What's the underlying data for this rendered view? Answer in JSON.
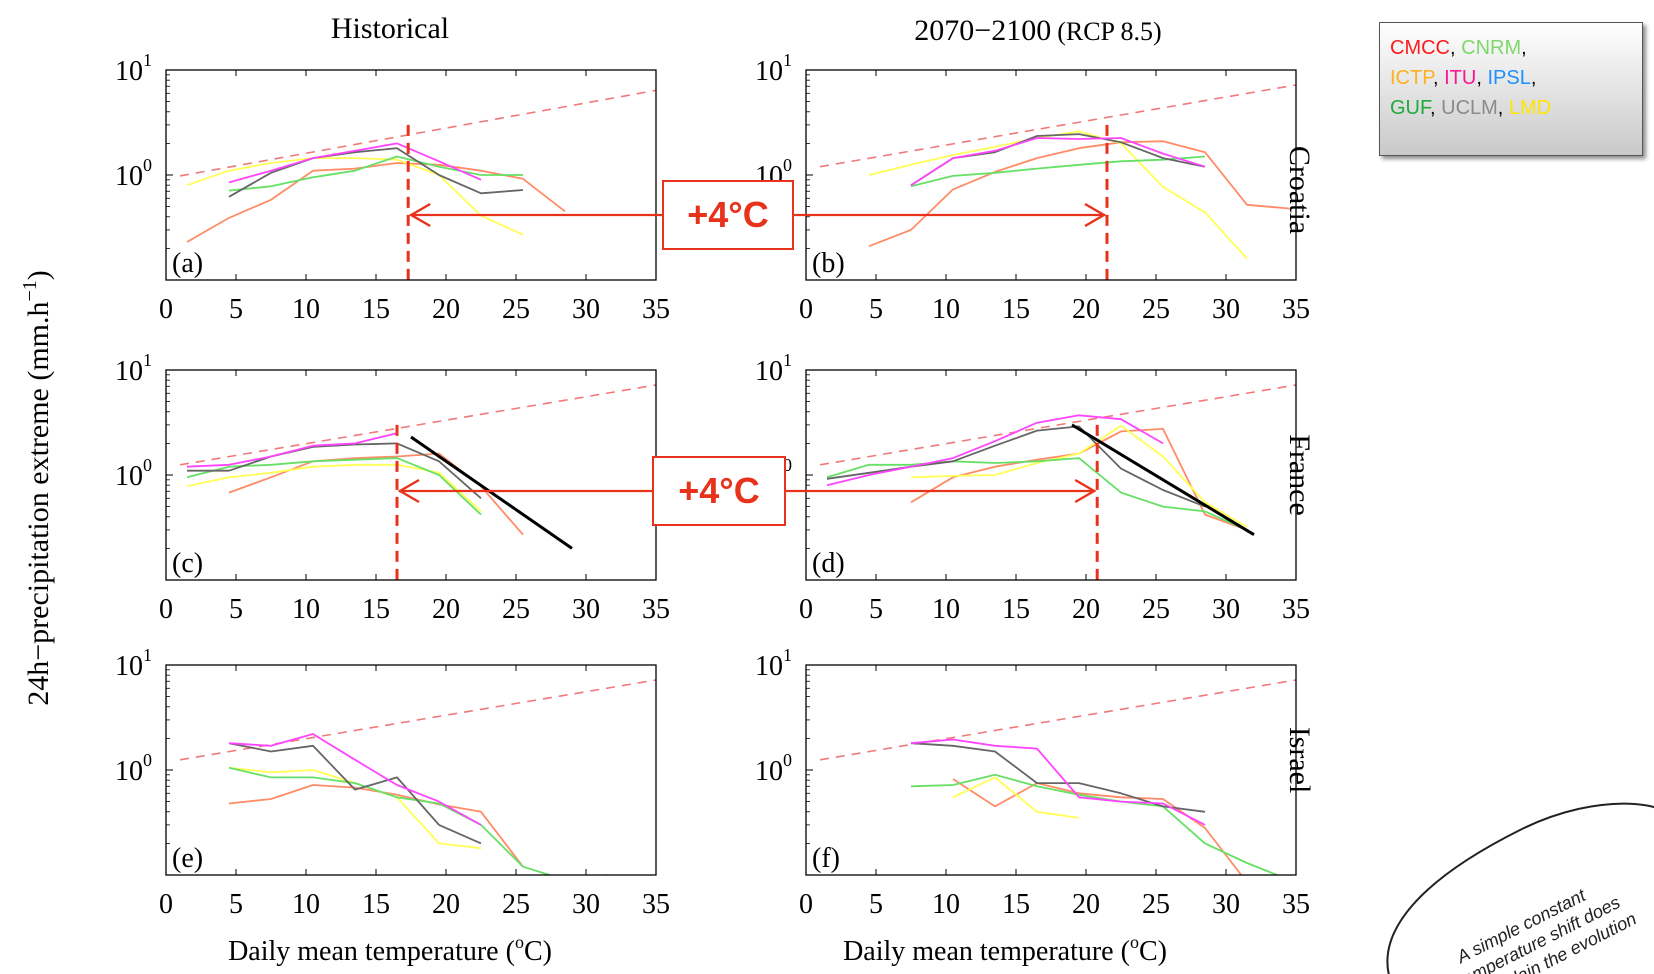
{
  "chart_data": {
    "type": "line",
    "column_titles": [
      "Historical",
      "2070−2100",
      "(RCP 8.5)"
    ],
    "ylabel": "24h−precipitation extreme (mm.h",
    "ylabel_sup": "−1",
    "ylabel_close": ")",
    "xlabel": "Daily mean temperature (",
    "xlabel_sup": "o",
    "xlabel_unit": "C)",
    "x_range": [
      0,
      35
    ],
    "x_ticks": [
      "0",
      "5",
      "10",
      "15",
      "20",
      "25",
      "30",
      "35"
    ],
    "y_scale": "log",
    "y_range": [
      0.1,
      10
    ],
    "y_ticks": [
      {
        "base": "10",
        "exp": "1",
        "value": 10
      },
      {
        "base": "10",
        "exp": "0",
        "value": 1
      }
    ],
    "row_labels": [
      "Croatia",
      "France",
      "Israel"
    ],
    "panel_labels": [
      "(a)",
      "(b)",
      "(c)",
      "(d)",
      "(e)",
      "(f)"
    ],
    "model_colors": {
      "CMCC": "#ff2020",
      "CNRM": "#7fd86a",
      "ICTP": "#ffb020",
      "ITU": "#ff1493",
      "IPSL": "#1e90ff",
      "GUF": "#20b040",
      "UCLM": "#8a8a8a",
      "LMD": "#ffe500"
    },
    "panels": [
      {
        "id": "a",
        "row": 0,
        "col": 0,
        "cc_line": [
          [
            1,
            0.98
          ],
          [
            35,
            6.4
          ]
        ],
        "vline": 17.3,
        "series": [
          {
            "color": "#ff8c66",
            "x": [
              1.5,
              4.5,
              7.5,
              10.5,
              13.5,
              16.5,
              19.5,
              22.5,
              25.5,
              28.5
            ],
            "y": [
              0.23,
              0.39,
              0.58,
              1.1,
              1.15,
              1.3,
              1.25,
              1.1,
              0.92,
              0.45
            ]
          },
          {
            "color": "#ffff55",
            "x": [
              1.5,
              4.5,
              7.5,
              10.5,
              13.5,
              16.5,
              19.5,
              22.5,
              25.5
            ],
            "y": [
              0.8,
              1.1,
              1.3,
              1.45,
              1.45,
              1.4,
              1.0,
              0.41,
              0.27
            ]
          },
          {
            "color": "#66e066",
            "x": [
              4.5,
              7.5,
              10.5,
              13.5,
              16.5,
              19.5,
              22.5,
              25.5
            ],
            "y": [
              0.71,
              0.78,
              0.95,
              1.1,
              1.5,
              1.2,
              1.0,
              1.0
            ]
          },
          {
            "color": "#666666",
            "x": [
              4.5,
              7.5,
              10.5,
              13.5,
              16.5,
              19.5,
              22.5,
              25.5
            ],
            "y": [
              0.62,
              1.05,
              1.45,
              1.65,
              1.8,
              1.0,
              0.67,
              0.72
            ]
          },
          {
            "color": "#ff44ff",
            "x": [
              4.5,
              7.5,
              10.5,
              13.5,
              16.5,
              19.5,
              22.5
            ],
            "y": [
              0.85,
              1.1,
              1.45,
              1.7,
              2.0,
              1.35,
              0.9
            ]
          }
        ]
      },
      {
        "id": "b",
        "row": 0,
        "col": 1,
        "cc_line": [
          [
            1,
            1.2
          ],
          [
            35,
            7.2
          ]
        ],
        "vline": 21.5,
        "series": [
          {
            "color": "#ff8c66",
            "x": [
              4.5,
              7.5,
              10.5,
              13.5,
              16.5,
              19.5,
              22.5,
              25.5,
              28.5,
              31.5,
              34.5
            ],
            "y": [
              0.21,
              0.3,
              0.73,
              1.07,
              1.45,
              1.8,
              2.05,
              2.1,
              1.65,
              0.52,
              0.48
            ]
          },
          {
            "color": "#ffff55",
            "x": [
              4.5,
              7.5,
              10.5,
              13.5,
              16.5,
              19.5,
              22.5,
              25.5,
              28.5,
              31.5
            ],
            "y": [
              1.0,
              1.25,
              1.55,
              1.85,
              2.25,
              2.6,
              2.0,
              0.77,
              0.44,
              0.16
            ]
          },
          {
            "color": "#66e066",
            "x": [
              7.5,
              10.5,
              13.5,
              16.5,
              19.5,
              22.5,
              25.5,
              28.5
            ],
            "y": [
              0.78,
              0.98,
              1.05,
              1.15,
              1.25,
              1.35,
              1.4,
              1.5
            ]
          },
          {
            "color": "#666666",
            "x": [
              7.5,
              10.5,
              13.5,
              16.5,
              19.5,
              22.5,
              25.5,
              28.5
            ],
            "y": [
              0.8,
              1.45,
              1.65,
              2.35,
              2.45,
              2.05,
              1.45,
              1.2
            ]
          },
          {
            "color": "#ff44ff",
            "x": [
              7.5,
              10.5,
              13.5,
              16.5,
              19.5,
              22.5,
              25.5,
              28.5
            ],
            "y": [
              0.8,
              1.45,
              1.7,
              2.25,
              2.2,
              2.25,
              1.6,
              1.2
            ]
          }
        ]
      },
      {
        "id": "c",
        "row": 1,
        "col": 0,
        "cc_line": [
          [
            1,
            1.25
          ],
          [
            35,
            7.2
          ]
        ],
        "vline": 16.5,
        "black_line": [
          [
            17.5,
            2.3
          ],
          [
            29,
            0.2
          ]
        ],
        "series": [
          {
            "color": "#ff8c66",
            "x": [
              4.5,
              7.5,
              10.5,
              13.5,
              16.5,
              19.5,
              22.5,
              25.5
            ],
            "y": [
              0.68,
              0.95,
              1.35,
              1.45,
              1.5,
              1.6,
              0.78,
              0.27
            ]
          },
          {
            "color": "#ffff55",
            "x": [
              1.5,
              4.5,
              7.5,
              10.5,
              13.5,
              16.5,
              19.5,
              22.5
            ],
            "y": [
              0.78,
              0.95,
              1.05,
              1.2,
              1.25,
              1.25,
              1.05,
              0.45
            ]
          },
          {
            "color": "#66e066",
            "x": [
              1.5,
              4.5,
              7.5,
              10.5,
              13.5,
              16.5,
              19.5,
              22.5
            ],
            "y": [
              0.95,
              1.2,
              1.25,
              1.35,
              1.4,
              1.45,
              1.0,
              0.42
            ]
          },
          {
            "color": "#666666",
            "x": [
              1.5,
              4.5,
              7.5,
              10.5,
              13.5,
              16.5,
              19.5,
              22.5
            ],
            "y": [
              1.1,
              1.1,
              1.5,
              1.85,
              1.95,
              2.0,
              1.35,
              0.6
            ]
          },
          {
            "color": "#ff44ff",
            "x": [
              1.5,
              4.5,
              7.5,
              10.5,
              13.5,
              16.5
            ],
            "y": [
              1.2,
              1.25,
              1.5,
              1.9,
              2.0,
              2.5
            ]
          }
        ]
      },
      {
        "id": "d",
        "row": 1,
        "col": 1,
        "cc_line": [
          [
            1,
            1.25
          ],
          [
            35,
            7.2
          ]
        ],
        "vline": 20.8,
        "black_line": [
          [
            19,
            3.0
          ],
          [
            32,
            0.27
          ]
        ],
        "series": [
          {
            "color": "#ff8c66",
            "x": [
              7.5,
              10.5,
              13.5,
              16.5,
              19.5,
              22.5,
              25.5,
              28.5,
              31.5
            ],
            "y": [
              0.55,
              0.95,
              1.2,
              1.4,
              1.6,
              2.6,
              2.75,
              0.42,
              0.3
            ]
          },
          {
            "color": "#ffff55",
            "x": [
              7.5,
              10.5,
              13.5,
              16.5,
              19.5,
              22.5,
              25.5,
              28.5,
              31.5
            ],
            "y": [
              0.95,
              0.98,
              1.0,
              1.3,
              1.6,
              2.95,
              1.5,
              0.55,
              0.32
            ]
          },
          {
            "color": "#66e066",
            "x": [
              1.5,
              4.5,
              7.5,
              10.5,
              13.5,
              16.5,
              19.5,
              22.5,
              25.5,
              28.5,
              31.5
            ],
            "y": [
              0.95,
              1.25,
              1.25,
              1.35,
              1.3,
              1.35,
              1.45,
              0.68,
              0.5,
              0.45,
              0.3
            ]
          },
          {
            "color": "#666666",
            "x": [
              1.5,
              4.5,
              7.5,
              10.5,
              13.5,
              16.5,
              19.5,
              22.5,
              25.5,
              28.5
            ],
            "y": [
              0.92,
              1.05,
              1.2,
              1.35,
              1.9,
              2.65,
              2.9,
              1.15,
              0.72,
              0.5
            ]
          },
          {
            "color": "#ff44ff",
            "x": [
              1.5,
              4.5,
              7.5,
              10.5,
              13.5,
              16.5,
              19.5,
              22.5,
              25.5
            ],
            "y": [
              0.8,
              1.0,
              1.2,
              1.45,
              2.1,
              3.15,
              3.7,
              3.4,
              2.0
            ]
          }
        ]
      },
      {
        "id": "e",
        "row": 2,
        "col": 0,
        "cc_line": [
          [
            1,
            1.25
          ],
          [
            35,
            7.2
          ]
        ],
        "series": [
          {
            "color": "#ff8c66",
            "x": [
              4.5,
              7.5,
              10.5,
              13.5,
              16.5,
              19.5,
              22.5,
              25.5
            ],
            "y": [
              0.48,
              0.53,
              0.72,
              0.68,
              0.58,
              0.47,
              0.4,
              0.12
            ]
          },
          {
            "color": "#ffff55",
            "x": [
              4.5,
              7.5,
              10.5,
              13.5,
              16.5,
              19.5,
              22.5
            ],
            "y": [
              1.05,
              0.95,
              1.0,
              0.75,
              0.55,
              0.2,
              0.18
            ]
          },
          {
            "color": "#66e066",
            "x": [
              4.5,
              7.5,
              10.5,
              13.5,
              16.5,
              19.5,
              22.5,
              25.5,
              28.5,
              31.5
            ],
            "y": [
              1.05,
              0.85,
              0.85,
              0.75,
              0.55,
              0.48,
              0.3,
              0.12,
              0.09,
              0.1
            ]
          },
          {
            "color": "#666666",
            "x": [
              4.5,
              7.5,
              10.5,
              13.5,
              16.5,
              19.5,
              22.5
            ],
            "y": [
              1.8,
              1.5,
              1.7,
              0.65,
              0.85,
              0.3,
              0.2
            ]
          },
          {
            "color": "#ff44ff",
            "x": [
              4.5,
              7.5,
              10.5,
              13.5,
              16.5,
              19.5,
              22.5
            ],
            "y": [
              1.8,
              1.7,
              2.2,
              1.25,
              0.72,
              0.5,
              0.3
            ]
          }
        ]
      },
      {
        "id": "f",
        "row": 2,
        "col": 1,
        "cc_line": [
          [
            1,
            1.25
          ],
          [
            35,
            7.2
          ]
        ],
        "series": [
          {
            "color": "#ff8c66",
            "x": [
              10.5,
              13.5,
              16.5,
              19.5,
              22.5,
              25.5,
              28.5,
              31.5
            ],
            "y": [
              0.82,
              0.45,
              0.75,
              0.6,
              0.55,
              0.53,
              0.28,
              0.085
            ]
          },
          {
            "color": "#ffff55",
            "x": [
              10.5,
              13.5,
              16.5,
              19.5
            ],
            "y": [
              0.55,
              0.85,
              0.4,
              0.35
            ]
          },
          {
            "color": "#66e066",
            "x": [
              7.5,
              10.5,
              13.5,
              16.5,
              19.5,
              22.5,
              25.5,
              28.5,
              31.5,
              34.5
            ],
            "y": [
              0.7,
              0.72,
              0.9,
              0.7,
              0.58,
              0.5,
              0.45,
              0.2,
              0.13,
              0.09
            ]
          },
          {
            "color": "#666666",
            "x": [
              7.5,
              10.5,
              13.5,
              16.5,
              19.5,
              22.5,
              25.5,
              28.5
            ],
            "y": [
              1.8,
              1.7,
              1.5,
              0.75,
              0.75,
              0.6,
              0.45,
              0.4
            ]
          },
          {
            "color": "#ff44ff",
            "x": [
              7.5,
              10.5,
              13.5,
              16.5,
              19.5,
              22.5,
              25.5,
              28.5
            ],
            "y": [
              1.8,
              1.95,
              1.7,
              1.6,
              0.55,
              0.5,
              0.48,
              0.3
            ]
          }
        ]
      }
    ],
    "callouts": [
      {
        "label": "+4°C",
        "panels": [
          "a",
          "b"
        ]
      },
      {
        "label": "+4°C",
        "panels": [
          "c",
          "d"
        ]
      }
    ]
  },
  "legend": {
    "entries": [
      {
        "text": "CMCC",
        "color": "#ff1a1a"
      },
      {
        "text": "CNRM",
        "color": "#7fd86a"
      },
      {
        "text": "ICTP",
        "color": "#ffb020"
      },
      {
        "text": "ITU",
        "color": "#ff1493"
      },
      {
        "text": "IPSL",
        "color": "#1e90ff"
      },
      {
        "text": "GUF",
        "color": "#1faa3a"
      },
      {
        "text": "UCLM",
        "color": "#8a8a8a"
      },
      {
        "text": "LMD",
        "color": "#ffe500"
      }
    ]
  },
  "note": {
    "lines": [
      "A simple constant",
      "temperature shift does",
      "not explain the evolution"
    ]
  }
}
